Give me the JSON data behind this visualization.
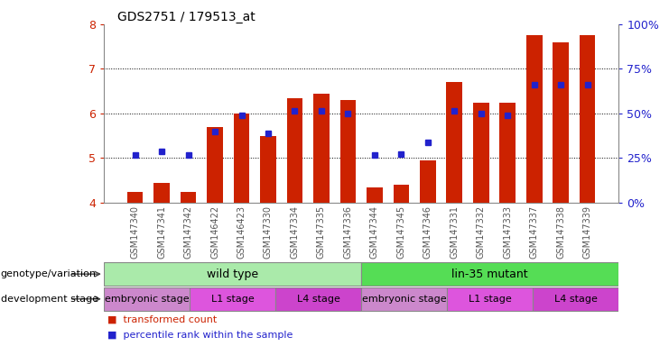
{
  "title": "GDS2751 / 179513_at",
  "samples": [
    "GSM147340",
    "GSM147341",
    "GSM147342",
    "GSM146422",
    "GSM146423",
    "GSM147330",
    "GSM147334",
    "GSM147335",
    "GSM147336",
    "GSM147344",
    "GSM147345",
    "GSM147346",
    "GSM147331",
    "GSM147332",
    "GSM147333",
    "GSM147337",
    "GSM147338",
    "GSM147339"
  ],
  "bar_values": [
    4.25,
    4.45,
    4.25,
    5.7,
    6.0,
    5.5,
    6.35,
    6.45,
    6.3,
    4.35,
    4.4,
    4.95,
    6.7,
    6.25,
    6.25,
    7.75,
    7.6,
    7.75
  ],
  "percentile_values": [
    5.07,
    5.15,
    5.07,
    5.6,
    5.95,
    5.55,
    6.05,
    6.05,
    6.0,
    5.07,
    5.1,
    5.35,
    6.05,
    6.0,
    5.95,
    6.65,
    6.65,
    6.65
  ],
  "bar_color": "#cc2200",
  "dot_color": "#2222cc",
  "ylim": [
    4.0,
    8.0
  ],
  "yticks": [
    4,
    5,
    6,
    7,
    8
  ],
  "right_ytick_vals": [
    4.0,
    5.0,
    6.0,
    7.0,
    8.0
  ],
  "right_ytick_labels": [
    "0%",
    "25%",
    "50%",
    "75%",
    "100%"
  ],
  "grid_values": [
    5,
    6,
    7
  ],
  "genotype_groups": [
    {
      "label": "wild type",
      "start": 0,
      "end": 9,
      "color": "#aaeaaa"
    },
    {
      "label": "lin-35 mutant",
      "start": 9,
      "end": 18,
      "color": "#55dd55"
    }
  ],
  "stage_groups": [
    {
      "label": "embryonic stage",
      "start": 0,
      "end": 3,
      "color": "#cc88cc"
    },
    {
      "label": "L1 stage",
      "start": 3,
      "end": 6,
      "color": "#dd55dd"
    },
    {
      "label": "L4 stage",
      "start": 6,
      "end": 9,
      "color": "#cc44cc"
    },
    {
      "label": "embryonic stage",
      "start": 9,
      "end": 12,
      "color": "#cc88cc"
    },
    {
      "label": "L1 stage",
      "start": 12,
      "end": 15,
      "color": "#dd55dd"
    },
    {
      "label": "L4 stage",
      "start": 15,
      "end": 18,
      "color": "#cc44cc"
    }
  ],
  "legend_items": [
    {
      "label": "transformed count",
      "color": "#cc2200"
    },
    {
      "label": "percentile rank within the sample",
      "color": "#2222cc"
    }
  ],
  "label_genotype": "genotype/variation",
  "label_stage": "development stage",
  "tick_color": "#cc2200",
  "right_tick_color": "#2222cc",
  "xtick_color": "#555555",
  "bg_color": "#ffffff"
}
